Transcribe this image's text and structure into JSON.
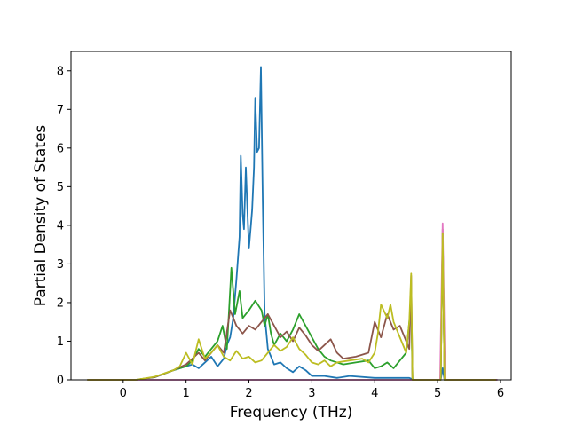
{
  "chart_data": {
    "type": "line",
    "title": "",
    "xlabel": "Frequency (THz)",
    "ylabel": "Partial Density of States",
    "xlim": [
      -0.83,
      6.17
    ],
    "ylim": [
      0,
      8.5
    ],
    "xticks": [
      "0",
      "1",
      "2",
      "3",
      "4",
      "5",
      "6"
    ],
    "yticks": [
      "0",
      "1",
      "2",
      "3",
      "4",
      "5",
      "6",
      "7",
      "8"
    ],
    "grid": false,
    "legend": "none",
    "series": [
      {
        "color": "#1f77b4",
        "points": [
          [
            -0.57,
            0
          ],
          [
            0.2,
            0
          ],
          [
            0.5,
            0.07
          ],
          [
            0.8,
            0.25
          ],
          [
            1.0,
            0.35
          ],
          [
            1.1,
            0.4
          ],
          [
            1.2,
            0.3
          ],
          [
            1.3,
            0.45
          ],
          [
            1.4,
            0.6
          ],
          [
            1.5,
            0.35
          ],
          [
            1.6,
            0.55
          ],
          [
            1.65,
            0.9
          ],
          [
            1.7,
            1.1
          ],
          [
            1.75,
            1.6
          ],
          [
            1.8,
            2.6
          ],
          [
            1.85,
            3.7
          ],
          [
            1.87,
            5.8
          ],
          [
            1.9,
            4.3
          ],
          [
            1.92,
            3.9
          ],
          [
            1.95,
            5.5
          ],
          [
            1.98,
            4.2
          ],
          [
            2.0,
            3.4
          ],
          [
            2.03,
            4.0
          ],
          [
            2.05,
            4.4
          ],
          [
            2.08,
            5.5
          ],
          [
            2.1,
            7.3
          ],
          [
            2.13,
            5.9
          ],
          [
            2.16,
            6.0
          ],
          [
            2.19,
            8.1
          ],
          [
            2.22,
            4.6
          ],
          [
            2.25,
            1.7
          ],
          [
            2.3,
            0.8
          ],
          [
            2.4,
            0.4
          ],
          [
            2.5,
            0.45
          ],
          [
            2.6,
            0.3
          ],
          [
            2.7,
            0.2
          ],
          [
            2.8,
            0.35
          ],
          [
            2.9,
            0.25
          ],
          [
            3.0,
            0.1
          ],
          [
            3.2,
            0.1
          ],
          [
            3.4,
            0.05
          ],
          [
            3.6,
            0.1
          ],
          [
            4.0,
            0.05
          ],
          [
            4.3,
            0.05
          ],
          [
            4.55,
            0.05
          ],
          [
            4.62,
            0
          ],
          [
            5.05,
            0
          ],
          [
            5.08,
            0.3
          ],
          [
            5.11,
            0
          ],
          [
            5.95,
            0
          ]
        ]
      },
      {
        "color": "#2ca02c",
        "points": [
          [
            -0.57,
            0
          ],
          [
            0.2,
            0
          ],
          [
            0.5,
            0.07
          ],
          [
            0.8,
            0.25
          ],
          [
            1.0,
            0.35
          ],
          [
            1.1,
            0.5
          ],
          [
            1.2,
            0.8
          ],
          [
            1.3,
            0.6
          ],
          [
            1.4,
            0.8
          ],
          [
            1.5,
            1.0
          ],
          [
            1.58,
            1.4
          ],
          [
            1.65,
            0.8
          ],
          [
            1.72,
            2.9
          ],
          [
            1.78,
            1.7
          ],
          [
            1.85,
            2.3
          ],
          [
            1.9,
            1.6
          ],
          [
            2.0,
            1.8
          ],
          [
            2.1,
            2.05
          ],
          [
            2.2,
            1.8
          ],
          [
            2.25,
            1.4
          ],
          [
            2.3,
            1.7
          ],
          [
            2.35,
            1.2
          ],
          [
            2.4,
            0.9
          ],
          [
            2.5,
            1.2
          ],
          [
            2.6,
            1.0
          ],
          [
            2.7,
            1.3
          ],
          [
            2.8,
            1.7
          ],
          [
            2.9,
            1.4
          ],
          [
            3.0,
            1.1
          ],
          [
            3.1,
            0.8
          ],
          [
            3.2,
            0.6
          ],
          [
            3.3,
            0.5
          ],
          [
            3.5,
            0.4
          ],
          [
            3.7,
            0.45
          ],
          [
            3.9,
            0.5
          ],
          [
            4.0,
            0.3
          ],
          [
            4.1,
            0.35
          ],
          [
            4.2,
            0.45
          ],
          [
            4.3,
            0.3
          ],
          [
            4.4,
            0.5
          ],
          [
            4.5,
            0.7
          ],
          [
            4.55,
            1.5
          ],
          [
            4.58,
            2.0
          ],
          [
            4.6,
            0
          ],
          [
            5.05,
            0
          ],
          [
            5.08,
            3.8
          ],
          [
            5.11,
            0
          ],
          [
            5.95,
            0
          ]
        ]
      },
      {
        "color": "#8c564b",
        "points": [
          [
            -0.57,
            0
          ],
          [
            0.2,
            0
          ],
          [
            0.5,
            0.07
          ],
          [
            0.8,
            0.25
          ],
          [
            1.0,
            0.4
          ],
          [
            1.1,
            0.55
          ],
          [
            1.2,
            0.7
          ],
          [
            1.3,
            0.5
          ],
          [
            1.4,
            0.7
          ],
          [
            1.5,
            0.9
          ],
          [
            1.6,
            0.7
          ],
          [
            1.7,
            1.8
          ],
          [
            1.8,
            1.4
          ],
          [
            1.9,
            1.2
          ],
          [
            2.0,
            1.4
          ],
          [
            2.1,
            1.3
          ],
          [
            2.2,
            1.5
          ],
          [
            2.3,
            1.7
          ],
          [
            2.4,
            1.4
          ],
          [
            2.5,
            1.1
          ],
          [
            2.6,
            1.25
          ],
          [
            2.7,
            1.0
          ],
          [
            2.8,
            1.35
          ],
          [
            2.9,
            1.15
          ],
          [
            3.0,
            0.9
          ],
          [
            3.1,
            0.75
          ],
          [
            3.2,
            0.9
          ],
          [
            3.3,
            1.05
          ],
          [
            3.4,
            0.7
          ],
          [
            3.5,
            0.55
          ],
          [
            3.7,
            0.6
          ],
          [
            3.9,
            0.7
          ],
          [
            4.0,
            1.5
          ],
          [
            4.1,
            1.1
          ],
          [
            4.2,
            1.7
          ],
          [
            4.3,
            1.3
          ],
          [
            4.4,
            1.4
          ],
          [
            4.5,
            1.0
          ],
          [
            4.55,
            0.8
          ],
          [
            4.58,
            2.7
          ],
          [
            4.6,
            0
          ],
          [
            5.05,
            0
          ],
          [
            5.08,
            3.9
          ],
          [
            5.11,
            0
          ],
          [
            5.95,
            0
          ]
        ]
      },
      {
        "color": "#e377c2",
        "points": [
          [
            -0.57,
            0
          ],
          [
            5.04,
            0
          ],
          [
            5.08,
            4.05
          ],
          [
            5.12,
            0
          ],
          [
            5.95,
            0
          ]
        ]
      },
      {
        "color": "#bcbd22",
        "points": [
          [
            -0.57,
            0
          ],
          [
            0.2,
            0
          ],
          [
            0.5,
            0.08
          ],
          [
            0.8,
            0.25
          ],
          [
            0.9,
            0.35
          ],
          [
            1.0,
            0.7
          ],
          [
            1.1,
            0.4
          ],
          [
            1.2,
            1.05
          ],
          [
            1.3,
            0.55
          ],
          [
            1.4,
            0.7
          ],
          [
            1.5,
            0.9
          ],
          [
            1.6,
            0.6
          ],
          [
            1.7,
            0.5
          ],
          [
            1.8,
            0.75
          ],
          [
            1.9,
            0.55
          ],
          [
            2.0,
            0.6
          ],
          [
            2.1,
            0.45
          ],
          [
            2.2,
            0.5
          ],
          [
            2.3,
            0.7
          ],
          [
            2.4,
            0.9
          ],
          [
            2.5,
            0.75
          ],
          [
            2.6,
            0.85
          ],
          [
            2.7,
            1.1
          ],
          [
            2.8,
            0.8
          ],
          [
            2.9,
            0.65
          ],
          [
            3.0,
            0.45
          ],
          [
            3.1,
            0.4
          ],
          [
            3.2,
            0.5
          ],
          [
            3.3,
            0.35
          ],
          [
            3.4,
            0.45
          ],
          [
            3.6,
            0.5
          ],
          [
            3.8,
            0.55
          ],
          [
            3.9,
            0.45
          ],
          [
            4.0,
            0.7
          ],
          [
            4.05,
            1.2
          ],
          [
            4.1,
            1.95
          ],
          [
            4.2,
            1.6
          ],
          [
            4.25,
            1.95
          ],
          [
            4.3,
            1.5
          ],
          [
            4.4,
            1.1
          ],
          [
            4.5,
            0.7
          ],
          [
            4.55,
            1.5
          ],
          [
            4.58,
            2.75
          ],
          [
            4.6,
            0
          ],
          [
            5.05,
            0
          ],
          [
            5.08,
            3.8
          ],
          [
            5.11,
            0
          ],
          [
            5.93,
            0
          ]
        ]
      }
    ]
  }
}
